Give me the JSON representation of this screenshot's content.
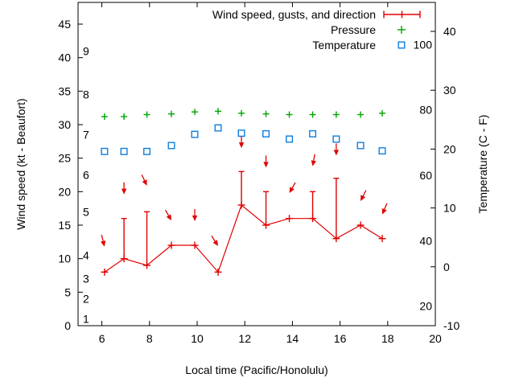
{
  "chart_data": {
    "type": "line",
    "title": "",
    "background": "#ffffff",
    "frame_color": "#000000",
    "grid": false,
    "legend": {
      "position": "top-right-inside",
      "entries": [
        {
          "label": "Wind speed, gusts, and direction",
          "marker": "errorbar-line",
          "color": "#e00000"
        },
        {
          "label": "Pressure",
          "marker": "plus",
          "color": "#00a400"
        },
        {
          "label": "Temperature",
          "marker": "open-square",
          "color": "#0d7ee0"
        }
      ]
    },
    "axes": {
      "x": {
        "label": "Local time (Pacific/Honolulu)",
        "range": [
          5,
          20
        ],
        "ticks": [
          6,
          8,
          10,
          12,
          14,
          16,
          18,
          20
        ]
      },
      "y_left": {
        "label": "Wind speed (kt - Beaufort)",
        "range_kt": [
          0,
          48
        ],
        "ticks_kt": [
          0,
          5,
          10,
          15,
          20,
          25,
          30,
          35,
          40,
          45
        ],
        "beaufort_labels": [
          {
            "label": "1",
            "kt": 1
          },
          {
            "label": "2",
            "kt": 4
          },
          {
            "label": "3",
            "kt": 7
          },
          {
            "label": "4",
            "kt": 10.5
          },
          {
            "label": "5",
            "kt": 17
          },
          {
            "label": "6",
            "kt": 22.5
          },
          {
            "label": "7",
            "kt": 28.5
          },
          {
            "label": "8",
            "kt": 34.5
          },
          {
            "label": "9",
            "kt": 41
          }
        ]
      },
      "y_right": {
        "label": "Temperature (C - F)",
        "range_c": [
          -10,
          45
        ],
        "ticks_c": [
          -10,
          0,
          10,
          20,
          30,
          40
        ],
        "ticks_f": [
          20,
          40,
          60,
          80,
          100
        ]
      }
    },
    "series": [
      {
        "name": "wind",
        "type": "errorbars-with-direction-arrows",
        "color": "#e00000",
        "points": [
          {
            "t": 6.11,
            "speed_kt": 8,
            "gust_kt": null,
            "arrow_angle_screen_deg": 76,
            "arrow_tip_kt": 11.8
          },
          {
            "t": 6.93,
            "speed_kt": 10,
            "gust_kt": 16,
            "arrow_angle_screen_deg": 90,
            "arrow_tip_kt": 19.6
          },
          {
            "t": 7.89,
            "speed_kt": 9,
            "gust_kt": 17,
            "arrow_angle_screen_deg": 65,
            "arrow_tip_kt": 20.9
          },
          {
            "t": 8.92,
            "speed_kt": 12,
            "gust_kt": null,
            "arrow_angle_screen_deg": 60,
            "arrow_tip_kt": 15.7
          },
          {
            "t": 9.9,
            "speed_kt": 12,
            "gust_kt": null,
            "arrow_angle_screen_deg": 90,
            "arrow_tip_kt": 15.6
          },
          {
            "t": 10.88,
            "speed_kt": 8,
            "gust_kt": null,
            "arrow_angle_screen_deg": 57,
            "arrow_tip_kt": 11.9
          },
          {
            "t": 11.86,
            "speed_kt": 18,
            "gust_kt": 23,
            "arrow_angle_screen_deg": 90,
            "arrow_tip_kt": 26.5
          },
          {
            "t": 12.89,
            "speed_kt": 15,
            "gust_kt": 20,
            "arrow_angle_screen_deg": 90,
            "arrow_tip_kt": 23.6
          },
          {
            "t": 13.87,
            "speed_kt": 16,
            "gust_kt": null,
            "arrow_angle_screen_deg": 120,
            "arrow_tip_kt": 19.8
          },
          {
            "t": 14.85,
            "speed_kt": 16,
            "gust_kt": 20,
            "arrow_angle_screen_deg": 100,
            "arrow_tip_kt": 23.8
          },
          {
            "t": 15.84,
            "speed_kt": 13,
            "gust_kt": 22,
            "arrow_angle_screen_deg": 90,
            "arrow_tip_kt": 25.4
          },
          {
            "t": 16.86,
            "speed_kt": 15,
            "gust_kt": null,
            "arrow_angle_screen_deg": 117,
            "arrow_tip_kt": 18.6
          },
          {
            "t": 17.77,
            "speed_kt": 13,
            "gust_kt": null,
            "arrow_angle_screen_deg": 113,
            "arrow_tip_kt": 16.6
          }
        ]
      },
      {
        "name": "pressure",
        "type": "points",
        "marker": "plus",
        "color": "#00a400",
        "axis_note": "plotted against hidden scale; positions recorded in left-axis kt units",
        "t": [
          6.11,
          6.93,
          7.89,
          8.92,
          9.9,
          10.88,
          11.86,
          12.89,
          13.87,
          14.85,
          15.84,
          16.86,
          17.77
        ],
        "y_kt_pos": [
          31.2,
          31.2,
          31.5,
          31.6,
          31.9,
          32.0,
          31.7,
          31.6,
          31.5,
          31.5,
          31.5,
          31.5,
          31.7
        ]
      },
      {
        "name": "temperature",
        "type": "points",
        "marker": "open-square",
        "color": "#0d7ee0",
        "t": [
          6.11,
          6.93,
          7.89,
          8.92,
          9.9,
          10.88,
          11.86,
          12.89,
          13.87,
          14.85,
          15.84,
          16.86,
          17.77
        ],
        "c": [
          19.6,
          19.6,
          19.6,
          20.6,
          22.5,
          23.6,
          22.7,
          22.6,
          21.7,
          22.6,
          21.7,
          20.6,
          19.7
        ]
      }
    ]
  }
}
